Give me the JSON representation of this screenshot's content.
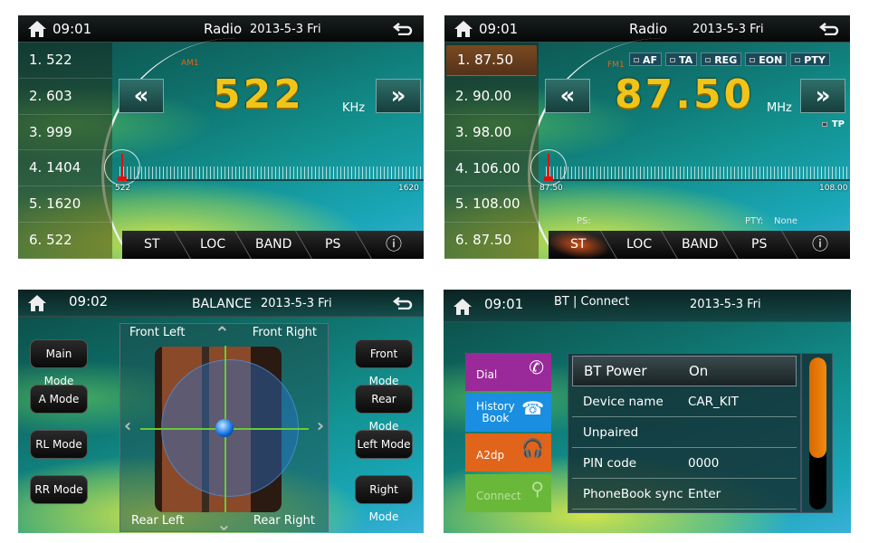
{
  "am_radio": {
    "time": "09:01",
    "title": "Radio",
    "date": "2013-5-3 Fri",
    "band": "AM1",
    "frequency": "522",
    "unit": "KHz",
    "presets": [
      "1.  522",
      "2.  603",
      "3.  999",
      "4. 1404",
      "5. 1620",
      "6.  522"
    ],
    "selected_preset": -1,
    "scale_min": "522",
    "scale_max": "1620",
    "tuner_value": 522,
    "scale_min_value": 522,
    "scale_max_value": 1620,
    "buttons": [
      "ST",
      "LOC",
      "BAND",
      "PS"
    ],
    "active_button": -1
  },
  "fm_radio": {
    "time": "09:01",
    "title": "Radio",
    "date": "2013-5-3 Fri",
    "band": "FM1",
    "frequency": "87.50",
    "unit": "MHz",
    "presets": [
      "1. 87.50",
      "2. 90.00",
      "3. 98.00",
      "4. 106.00",
      "5. 108.00",
      "6. 87.50"
    ],
    "selected_preset": 0,
    "flags": [
      "AF",
      "TA",
      "REG",
      "EON",
      "PTY"
    ],
    "tp": "TP",
    "ps_label": "PS:",
    "pty_label": "PTY:",
    "pty_value": "None",
    "scale_min": "87.50",
    "scale_max": "108.00",
    "tuner_value": 87.5,
    "scale_min_value": 87.5,
    "scale_max_value": 108,
    "buttons": [
      "ST",
      "LOC",
      "BAND",
      "PS"
    ],
    "active_button": 0
  },
  "balance": {
    "time": "09:02",
    "title": "BALANCE",
    "date": "2013-5-3 Fri",
    "left_buttons": [
      "Main Mode",
      "A Mode",
      "RL Mode",
      "RR Mode"
    ],
    "right_buttons": [
      "Front Mode",
      "Rear Mode",
      "Left Mode",
      "Right Mode"
    ],
    "corners": {
      "fl": "Front Left",
      "fr": "Front Right",
      "rl": "Rear Left",
      "rr": "Rear Right"
    },
    "balance_x": 0,
    "balance_y": 0
  },
  "bt": {
    "time": "09:01",
    "title": "BT | Connect",
    "date": "2013-5-3 Fri",
    "tiles": [
      {
        "label": "Dial",
        "color": "#9a2a9a",
        "icon": "phone-icon"
      },
      {
        "label": "History\nBook",
        "color": "#1a8ee0",
        "icon": "phonebook-icon"
      },
      {
        "label": "A2dp",
        "color": "#e0641a",
        "icon": "bluetooth-headphones-icon"
      },
      {
        "label": "Connect",
        "color": "#6ab83a",
        "icon": "search-icon"
      }
    ],
    "rows": [
      {
        "k": "BT Power",
        "v": "On"
      },
      {
        "k": "Device name",
        "v": "CAR_KIT"
      },
      {
        "k": "Unpaired",
        "v": ""
      },
      {
        "k": "PIN code",
        "v": "0000"
      },
      {
        "k": "PhoneBook sync",
        "v": "Enter"
      }
    ],
    "scroll_thumb_fraction": 0.66,
    "scroll_position": 0
  }
}
